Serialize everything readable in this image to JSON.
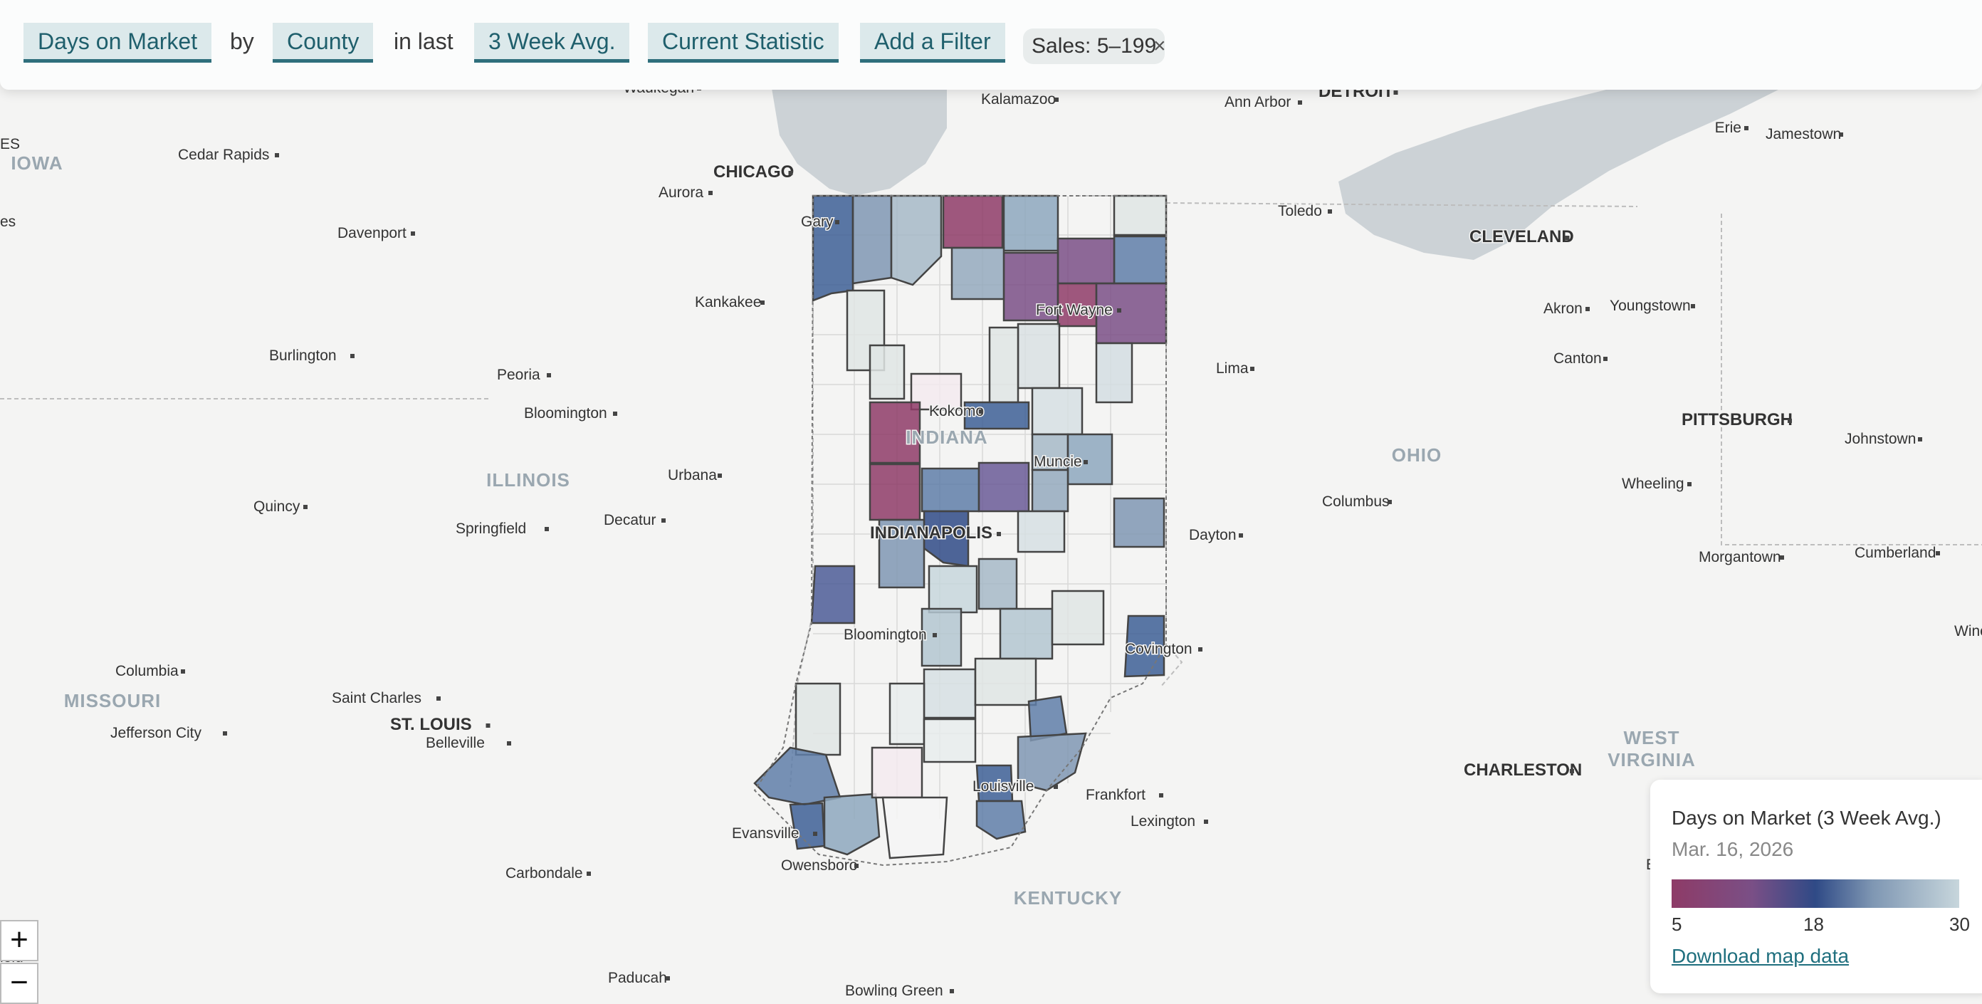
{
  "toolbar": {
    "metric": "Days on Market",
    "by": "by",
    "geography": "County",
    "in_last": "in last",
    "period": "3 Week Avg.",
    "statistic": "Current Statistic",
    "add_filter": "Add a Filter",
    "filter_pill": "Sales: 5–199",
    "filter_remove": "×"
  },
  "zoom": {
    "in": "+",
    "out": "−"
  },
  "map_labels": {
    "states": [
      "IOWA",
      "ILLINOIS",
      "INDIANA",
      "OHIO",
      "MISSOURI",
      "KENTUCKY",
      "WEST VIRGINIA"
    ],
    "cities": [
      "Waukegan",
      "Kalamazoo",
      "Ann Arbor",
      "DETROIT",
      "Erie",
      "Jamestown",
      "Cedar Rapids",
      "CHICAGO",
      "Aurora",
      "Toledo",
      "CLEVELAND",
      "Davenport",
      "Gary",
      "Kankakee",
      "Fort Wayne",
      "Akron",
      "Youngstown",
      "Burlington",
      "Peoria",
      "Lima",
      "Canton",
      "Bloomington",
      "Kokomo",
      "PITTSBURGH",
      "Johnstown",
      "Muncie",
      "Quincy",
      "Urbana",
      "Columbus",
      "Wheeling",
      "Springfield",
      "Decatur",
      "INDIANAPOLIS",
      "Dayton",
      "Morgantown",
      "Cumberland",
      "Bloomington",
      "Covington",
      "Columbia",
      "Saint Charles",
      "ST. LOUIS",
      "Belleville",
      "Jefferson City",
      "Louisville",
      "Frankfort",
      "CHARLESTON",
      "Evansville",
      "Lexington",
      "Owensboro",
      "Carbondale",
      "Beckley",
      "Paducah",
      "ES",
      "es",
      "Winch",
      "ield",
      "Bowling Green"
    ]
  },
  "colors": {
    "low": "#8e3b67",
    "mid": "#2f4a86",
    "high": "#c7d6dc",
    "water": "#ccd2d6",
    "land": "#f4f4f3"
  },
  "legend": {
    "title": "Days on Market (3 Week Avg.)",
    "date": "Mar. 16, 2026",
    "min": "5",
    "mid": "18",
    "max": "30",
    "download": "Download map data"
  }
}
